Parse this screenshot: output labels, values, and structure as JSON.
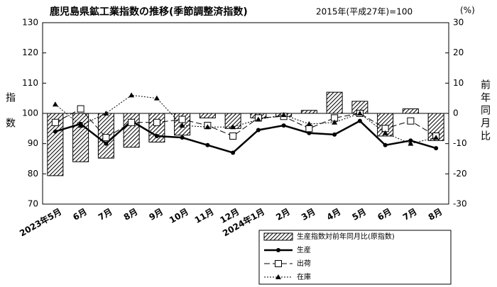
{
  "chart_data": {
    "type": "combo",
    "title": "鹿児島県鉱工業指数の推移(季節調整済指数)",
    "subtitle": "2015年(平成27年)=100",
    "y2_unit": "(%)",
    "ylabel": "指数",
    "y2label": "前年同月比",
    "categories": [
      "2023年5月",
      "6月",
      "7月",
      "8月",
      "9月",
      "10月",
      "11月",
      "12月",
      "2024年1月",
      "2月",
      "3月",
      "4月",
      "5月",
      "6月",
      "7月",
      "8月"
    ],
    "ylim": [
      70,
      130
    ],
    "yticks": [
      70,
      80,
      90,
      100,
      110,
      120,
      130
    ],
    "y2lim": [
      -30,
      30
    ],
    "y2ticks": [
      -30,
      -20,
      -10,
      0,
      10,
      20,
      30
    ],
    "series": [
      {
        "name": "生産指数対前年同月比(原指数)",
        "type": "bar",
        "axis": "y2",
        "color": "#000000",
        "values": [
          -20.6,
          -16,
          -14.8,
          -11.2,
          -9.5,
          -7.2,
          -1.5,
          -5,
          -1.5,
          -1,
          1,
          7,
          4,
          -7.5,
          1.5,
          -9
        ]
      },
      {
        "name": "生産",
        "type": "line",
        "marker": "circle",
        "dash": "solid",
        "color": "#000000",
        "values": [
          94,
          96.5,
          90,
          97.5,
          92.5,
          92,
          89.5,
          87,
          94.5,
          96,
          93.5,
          93,
          97.5,
          89.5,
          91,
          88.5
        ]
      },
      {
        "name": "出荷",
        "type": "line",
        "marker": "square",
        "dash": "dashed",
        "color": "#000000",
        "values": [
          97,
          101.5,
          92,
          97,
          97,
          98,
          96,
          92.5,
          98.5,
          99,
          95,
          98.5,
          100,
          95,
          97.5,
          92.5
        ]
      },
      {
        "name": "在庫",
        "type": "line",
        "marker": "triangle",
        "dash": "dotted",
        "color": "#000000",
        "values": [
          103,
          96,
          100,
          106,
          105,
          96,
          95.5,
          95.5,
          98,
          99.5,
          96.5,
          97,
          100,
          93.5,
          90,
          92
        ]
      }
    ]
  }
}
